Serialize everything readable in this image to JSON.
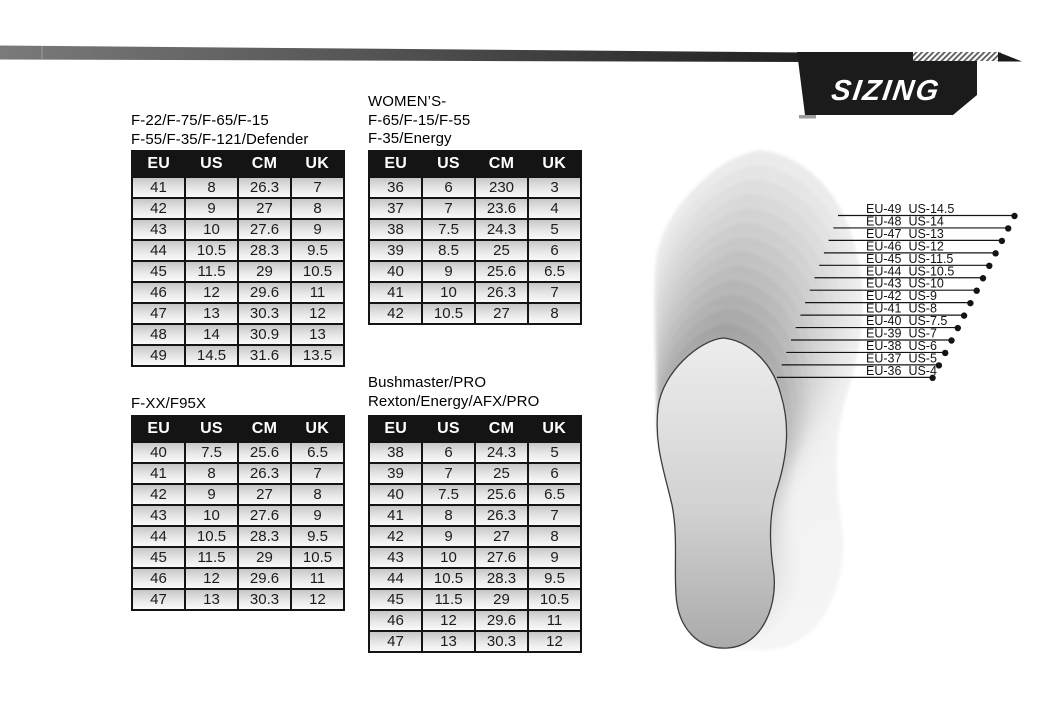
{
  "logo": {
    "text": "SIZING"
  },
  "colors": {
    "banner_dark": "#1b1b1b",
    "banner_gradient_left": "#7a7a7a",
    "banner_gradient_right": "#1f1f1f",
    "table_header_bg": "#141414",
    "table_header_text": "#ffffff",
    "cell_text": "#1c1c1c"
  },
  "tables": [
    {
      "id": "mens-main",
      "title_lines": [
        "F-22/F-75/F-65/F-15",
        "F-55/F-35/F-121/Defender"
      ],
      "headers": [
        "EU",
        "US",
        "CM",
        "UK"
      ],
      "rows": [
        [
          "41",
          "8",
          "26.3",
          "7"
        ],
        [
          "42",
          "9",
          "27",
          "8"
        ],
        [
          "43",
          "10",
          "27.6",
          "9"
        ],
        [
          "44",
          "10.5",
          "28.3",
          "9.5"
        ],
        [
          "45",
          "11.5",
          "29",
          "10.5"
        ],
        [
          "46",
          "12",
          "29.6",
          "11"
        ],
        [
          "47",
          "13",
          "30.3",
          "12"
        ],
        [
          "48",
          "14",
          "30.9",
          "13"
        ],
        [
          "49",
          "14.5",
          "31.6",
          "13.5"
        ]
      ]
    },
    {
      "id": "womens",
      "title_lines": [
        "WOMEN’S-",
        "F-65/F-15/F-55",
        "F-35/Energy"
      ],
      "headers": [
        "EU",
        "US",
        "CM",
        "UK"
      ],
      "rows": [
        [
          "36",
          "6",
          "230",
          "3"
        ],
        [
          "37",
          "7",
          "23.6",
          "4"
        ],
        [
          "38",
          "7.5",
          "24.3",
          "5"
        ],
        [
          "39",
          "8.5",
          "25",
          "6"
        ],
        [
          "40",
          "9",
          "25.6",
          "6.5"
        ],
        [
          "41",
          "10",
          "26.3",
          "7"
        ],
        [
          "42",
          "10.5",
          "27",
          "8"
        ]
      ]
    },
    {
      "id": "fxx",
      "title_lines": [
        "F-XX/F95X"
      ],
      "headers": [
        "EU",
        "US",
        "CM",
        "UK"
      ],
      "rows": [
        [
          "40",
          "7.5",
          "25.6",
          "6.5"
        ],
        [
          "41",
          "8",
          "26.3",
          "7"
        ],
        [
          "42",
          "9",
          "27",
          "8"
        ],
        [
          "43",
          "10",
          "27.6",
          "9"
        ],
        [
          "44",
          "10.5",
          "28.3",
          "9.5"
        ],
        [
          "45",
          "11.5",
          "29",
          "10.5"
        ],
        [
          "46",
          "12",
          "29.6",
          "11"
        ],
        [
          "47",
          "13",
          "30.3",
          "12"
        ]
      ]
    },
    {
      "id": "bushmaster",
      "title_lines": [
        "Bushmaster/PRO",
        "Rexton/Energy/AFX/PRO"
      ],
      "headers": [
        "EU",
        "US",
        "CM",
        "UK"
      ],
      "rows": [
        [
          "38",
          "6",
          "24.3",
          "5"
        ],
        [
          "39",
          "7",
          "25",
          "6"
        ],
        [
          "40",
          "7.5",
          "25.6",
          "6.5"
        ],
        [
          "41",
          "8",
          "26.3",
          "7"
        ],
        [
          "42",
          "9",
          "27",
          "8"
        ],
        [
          "43",
          "10",
          "27.6",
          "9"
        ],
        [
          "44",
          "10.5",
          "28.3",
          "9.5"
        ],
        [
          "45",
          "11.5",
          "29",
          "10.5"
        ],
        [
          "46",
          "12",
          "29.6",
          "11"
        ],
        [
          "47",
          "13",
          "30.3",
          "12"
        ]
      ]
    }
  ],
  "legend": {
    "items": [
      {
        "eu": "EU-49",
        "us": "US-14.5"
      },
      {
        "eu": "EU-48",
        "us": "US-14"
      },
      {
        "eu": "EU-47",
        "us": "US-13"
      },
      {
        "eu": "EU-46",
        "us": "US-12"
      },
      {
        "eu": "EU-45",
        "us": "US-11.5"
      },
      {
        "eu": "EU-44",
        "us": "US-10.5"
      },
      {
        "eu": "EU-43",
        "us": "US-10"
      },
      {
        "eu": "EU-42",
        "us": "US-9"
      },
      {
        "eu": "EU-41",
        "us": "US-8"
      },
      {
        "eu": "EU-40",
        "us": "US-7.5"
      },
      {
        "eu": "EU-39",
        "us": "US-7"
      },
      {
        "eu": "EU-38",
        "us": "US-6"
      },
      {
        "eu": "EU-37",
        "us": "US-5"
      },
      {
        "eu": "EU-36",
        "us": "US-4"
      }
    ]
  }
}
